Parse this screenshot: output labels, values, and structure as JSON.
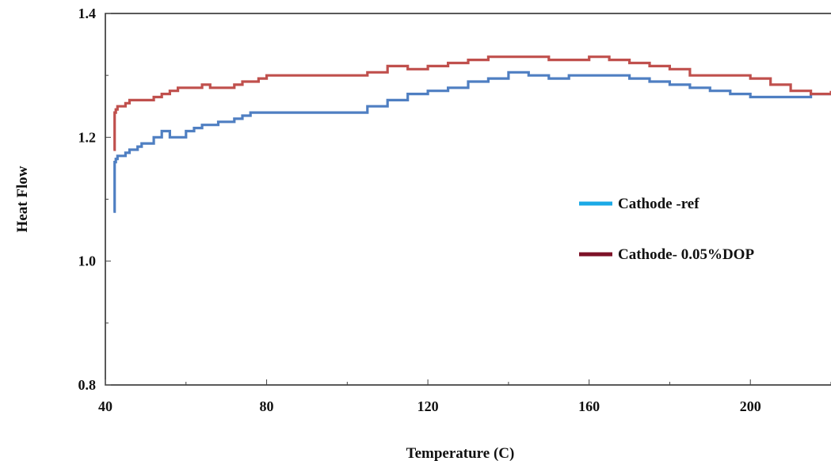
{
  "chart_data": {
    "type": "line",
    "title": "",
    "xlabel": "Temperature (C)",
    "ylabel": "Heat Flow",
    "xlim": [
      40,
      220
    ],
    "ylim": [
      0.8,
      1.4
    ],
    "x_ticks": [
      40,
      80,
      120,
      160,
      200
    ],
    "y_ticks": [
      0.8,
      1.0,
      1.2,
      1.4
    ],
    "x_tick_labels": [
      "40",
      "80",
      "120",
      "160",
      "200"
    ],
    "y_tick_labels": [
      "0.8",
      "1.0",
      "1.2",
      "1.4"
    ],
    "grid": false,
    "legend_position": "center-right",
    "series": [
      {
        "name": "Cathode -ref",
        "legend_color": "#1ba9e6",
        "color": "#4f7fc2",
        "x": [
          42,
          42.3,
          42.6,
          43,
          44,
          45,
          46,
          47,
          48,
          49,
          50,
          52,
          54,
          56,
          58,
          60,
          62,
          64,
          66,
          68,
          70,
          72,
          74,
          76,
          78,
          80,
          85,
          90,
          95,
          100,
          105,
          110,
          115,
          120,
          125,
          130,
          135,
          140,
          145,
          150,
          155,
          160,
          165,
          170,
          175,
          180,
          185,
          190,
          195,
          200,
          205,
          210,
          215,
          220
        ],
        "y": [
          1.08,
          1.16,
          1.165,
          1.17,
          1.17,
          1.175,
          1.18,
          1.18,
          1.185,
          1.19,
          1.19,
          1.2,
          1.21,
          1.2,
          1.2,
          1.21,
          1.215,
          1.22,
          1.22,
          1.225,
          1.225,
          1.23,
          1.235,
          1.24,
          1.24,
          1.24,
          1.24,
          1.24,
          1.24,
          1.24,
          1.25,
          1.26,
          1.27,
          1.275,
          1.28,
          1.29,
          1.295,
          1.305,
          1.3,
          1.295,
          1.3,
          1.3,
          1.3,
          1.295,
          1.29,
          1.285,
          1.28,
          1.275,
          1.27,
          1.265,
          1.265,
          1.265,
          1.27,
          1.27
        ]
      },
      {
        "name": "Cathode- 0.05%DOP",
        "legend_color": "#7d1127",
        "color": "#c0504d",
        "x": [
          42,
          42.3,
          42.6,
          43,
          44,
          45,
          46,
          48,
          50,
          52,
          54,
          56,
          58,
          60,
          62,
          64,
          66,
          68,
          70,
          72,
          74,
          76,
          78,
          80,
          85,
          90,
          95,
          100,
          105,
          110,
          115,
          120,
          125,
          130,
          135,
          140,
          145,
          150,
          155,
          160,
          165,
          170,
          175,
          180,
          185,
          190,
          195,
          200,
          205,
          210,
          215,
          220
        ],
        "y": [
          1.18,
          1.24,
          1.245,
          1.25,
          1.25,
          1.255,
          1.26,
          1.26,
          1.26,
          1.265,
          1.27,
          1.275,
          1.28,
          1.28,
          1.28,
          1.285,
          1.28,
          1.28,
          1.28,
          1.285,
          1.29,
          1.29,
          1.295,
          1.3,
          1.3,
          1.3,
          1.3,
          1.3,
          1.305,
          1.315,
          1.31,
          1.315,
          1.32,
          1.325,
          1.33,
          1.33,
          1.33,
          1.325,
          1.325,
          1.33,
          1.325,
          1.32,
          1.315,
          1.31,
          1.3,
          1.3,
          1.3,
          1.295,
          1.285,
          1.275,
          1.27,
          1.275
        ]
      }
    ]
  }
}
